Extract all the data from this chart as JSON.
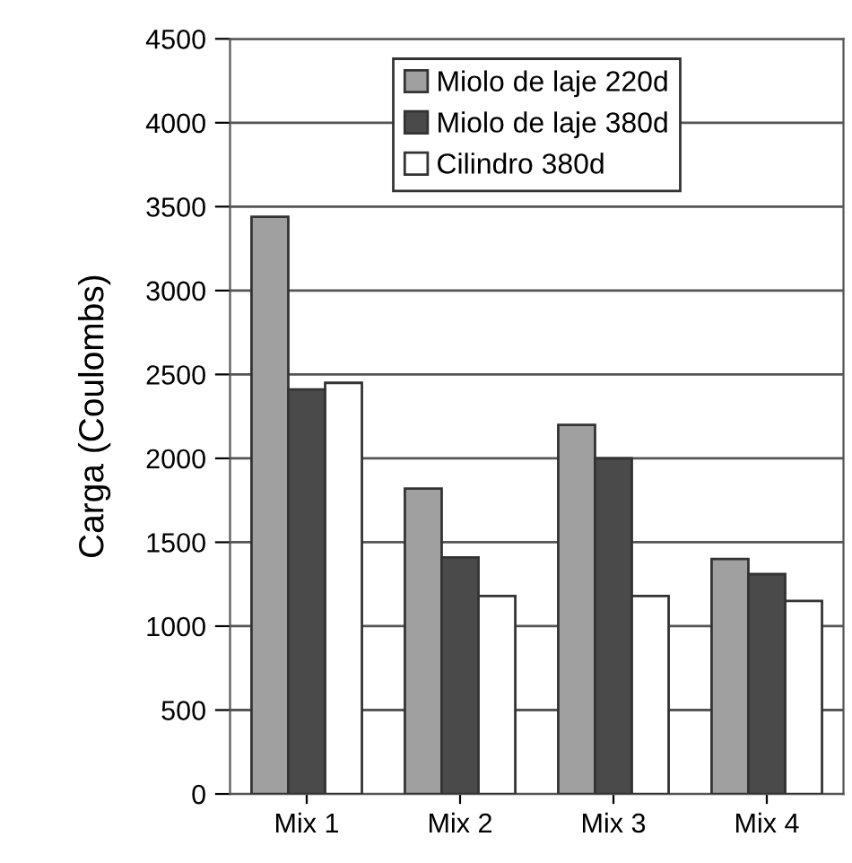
{
  "chart_data": {
    "type": "bar",
    "ylabel": "Carga (Coulombs)",
    "categories": [
      "Mix 1",
      "Mix 2",
      "Mix 3",
      "Mix 4"
    ],
    "series": [
      {
        "name": "Miolo de laje 220d",
        "color": "#a0a0a0",
        "values": [
          3440,
          1820,
          2200,
          1400
        ]
      },
      {
        "name": "Miolo de laje 380d",
        "color": "#4a4a4a",
        "values": [
          2410,
          1410,
          2000,
          1310
        ]
      },
      {
        "name": "Cilindro 380d",
        "color": "#ffffff",
        "values": [
          2450,
          1180,
          1180,
          1150
        ]
      }
    ],
    "ylim": [
      0,
      4500
    ],
    "yticks": [
      0,
      500,
      1000,
      1500,
      2000,
      2500,
      3000,
      3500,
      4000,
      4500
    ],
    "grid": "y",
    "legend": "top"
  }
}
